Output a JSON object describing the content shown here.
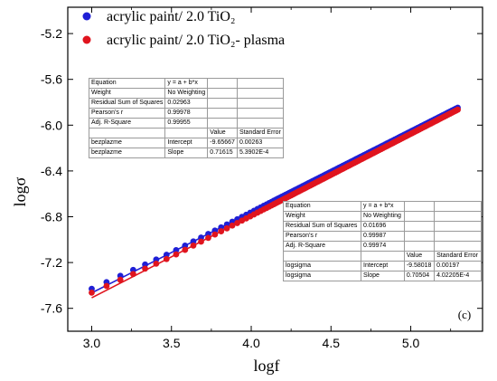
{
  "chart_data": {
    "type": "scatter",
    "xlabel": "logf",
    "ylabel": "logσ",
    "xlim": [
      2.85,
      5.45
    ],
    "ylim": [
      -7.8,
      -4.97
    ],
    "xticks": [
      "3.0",
      "3.5",
      "4.0",
      "4.5",
      "5.0"
    ],
    "xtick_values": [
      3.0,
      3.5,
      4.0,
      4.5,
      5.0
    ],
    "yticks": [
      "-5.2",
      "-5.6",
      "-6.0",
      "-6.4",
      "-6.8",
      "-7.2",
      "-7.6"
    ],
    "ytick_values": [
      -5.2,
      -5.6,
      -6.0,
      -6.4,
      -6.8,
      -7.2,
      -7.6
    ],
    "panel_label": "(c)",
    "legend_position": "top-left",
    "series": [
      {
        "name": "acrylic paint/ 2.0 TiO₂",
        "color": "#1f1fd6",
        "fit": {
          "intercept": -9.58018,
          "slope": 0.70504
        },
        "x_range": [
          3.0,
          5.3
        ]
      },
      {
        "name": "acrylic paint/ 2.0 TiO₂- plasma",
        "color": "#e0141e",
        "fit": {
          "intercept": -9.65667,
          "slope": 0.71615
        },
        "x_range": [
          3.0,
          5.3
        ]
      }
    ]
  },
  "fit_table_plasma": {
    "rows": [
      [
        "Equation",
        "y = a + b*x",
        "",
        ""
      ],
      [
        "Weight",
        "No Weighting",
        "",
        ""
      ],
      [
        "Residual Sum of Squares",
        "0.02963",
        "",
        ""
      ],
      [
        "Pearson's r",
        "0.99978",
        "",
        ""
      ],
      [
        "Adj. R-Square",
        "0.99955",
        "",
        ""
      ],
      [
        "",
        "",
        "Value",
        "Standard Error"
      ],
      [
        "bezplazme",
        "Intercept",
        "-9.65667",
        "0.00263"
      ],
      [
        "bezplazme",
        "Slope",
        "0.71615",
        "5.3902E-4"
      ]
    ]
  },
  "fit_table_ref": {
    "rows": [
      [
        "Equation",
        "y = a + b*x",
        "",
        ""
      ],
      [
        "Weight",
        "No Weighting",
        "",
        ""
      ],
      [
        "Residual Sum of Squares",
        "0.01696",
        "",
        ""
      ],
      [
        "Pearson's r",
        "0.99987",
        "",
        ""
      ],
      [
        "Adj. R-Square",
        "0.99974",
        "",
        ""
      ],
      [
        "",
        "",
        "Value",
        "Standard Error"
      ],
      [
        "logsigma",
        "Intercept",
        "-9.58018",
        "0.00197"
      ],
      [
        "logsigma",
        "Slope",
        "0.70504",
        "4.02205E-4"
      ]
    ]
  }
}
